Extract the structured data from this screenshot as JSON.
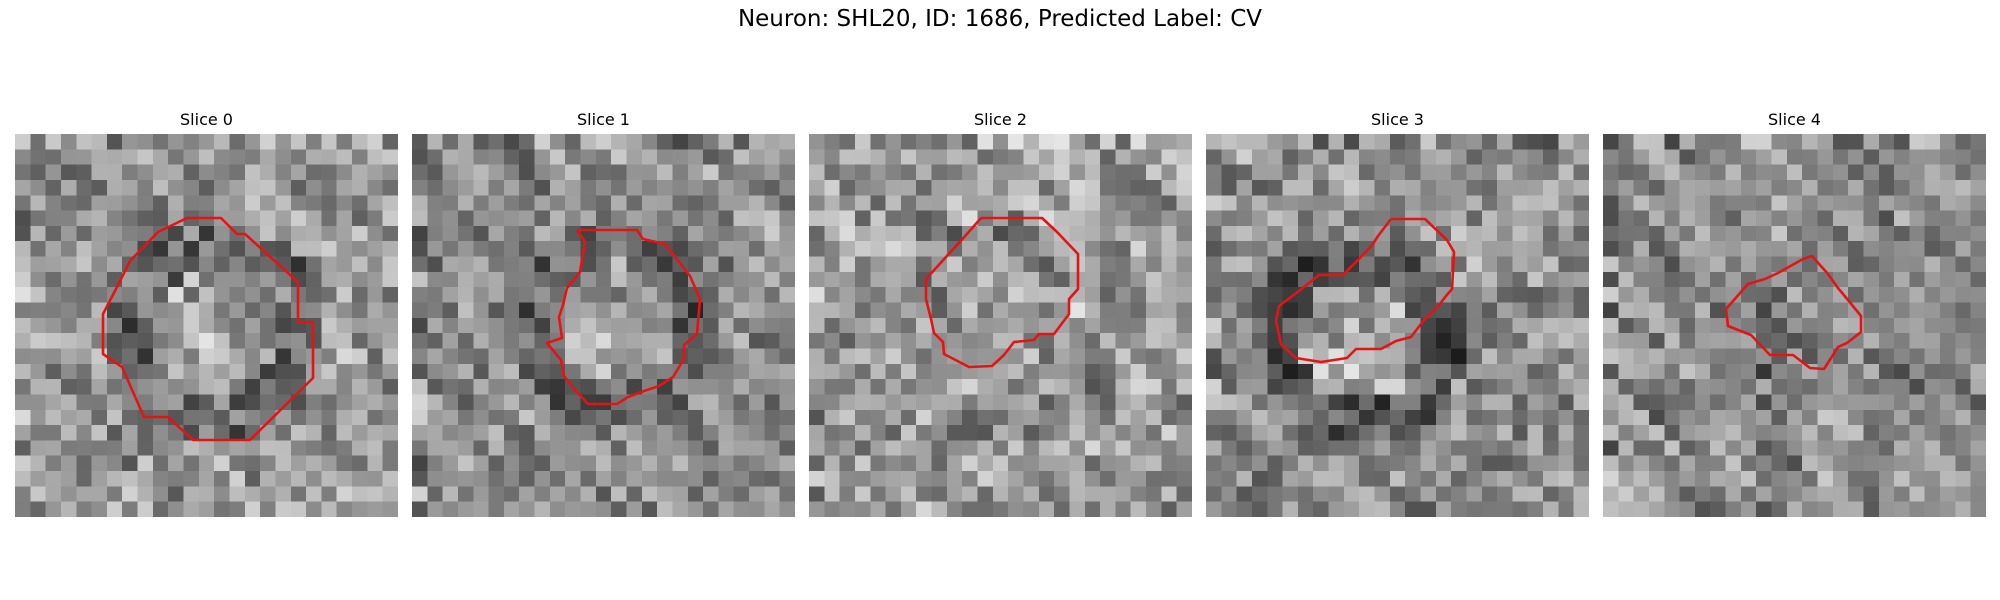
{
  "title": "Neuron: SHL20, ID: 1686, Predicted Label: CV",
  "contour_color": "#e41414",
  "colormap": "gray",
  "slices": [
    {
      "label": "Slice 0"
    },
    {
      "label": "Slice 1"
    },
    {
      "label": "Slice 2"
    },
    {
      "label": "Slice 3"
    },
    {
      "label": "Slice 4"
    }
  ]
}
